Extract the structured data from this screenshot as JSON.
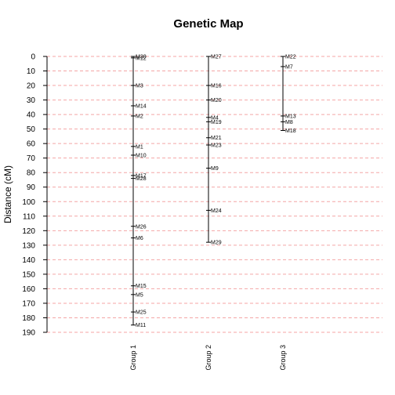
{
  "chart_data": {
    "type": "genetic-map",
    "title": "Genetic Map",
    "ylabel": "Distance (cM)",
    "ylim": [
      0,
      190
    ],
    "yticks": [
      0,
      10,
      20,
      30,
      40,
      50,
      60,
      70,
      80,
      90,
      100,
      110,
      120,
      130,
      140,
      150,
      160,
      170,
      180,
      190
    ],
    "grid": true,
    "grid_color": "#f4a6a6",
    "groups": [
      {
        "name": "Group 1",
        "markers": [
          {
            "name": "M30",
            "pos": 0
          },
          {
            "name": "M12",
            "pos": 1
          },
          {
            "name": "M3",
            "pos": 20
          },
          {
            "name": "M14",
            "pos": 34
          },
          {
            "name": "M2",
            "pos": 41
          },
          {
            "name": "M1",
            "pos": 62
          },
          {
            "name": "M10",
            "pos": 68
          },
          {
            "name": "M17",
            "pos": 82
          },
          {
            "name": "M28",
            "pos": 84
          },
          {
            "name": "M26",
            "pos": 117
          },
          {
            "name": "M6",
            "pos": 125
          },
          {
            "name": "M15",
            "pos": 158
          },
          {
            "name": "M5",
            "pos": 164
          },
          {
            "name": "M25",
            "pos": 176
          },
          {
            "name": "M11",
            "pos": 185
          }
        ]
      },
      {
        "name": "Group 2",
        "markers": [
          {
            "name": "M27",
            "pos": 0
          },
          {
            "name": "M16",
            "pos": 20
          },
          {
            "name": "M20",
            "pos": 30
          },
          {
            "name": "M4",
            "pos": 42
          },
          {
            "name": "M19",
            "pos": 45
          },
          {
            "name": "M21",
            "pos": 56
          },
          {
            "name": "M23",
            "pos": 61
          },
          {
            "name": "M9",
            "pos": 77
          },
          {
            "name": "M24",
            "pos": 106
          },
          {
            "name": "M29",
            "pos": 128
          }
        ]
      },
      {
        "name": "Group 3",
        "markers": [
          {
            "name": "M22",
            "pos": 0
          },
          {
            "name": "M7",
            "pos": 7
          },
          {
            "name": "M13",
            "pos": 41
          },
          {
            "name": "M8",
            "pos": 45
          },
          {
            "name": "M18",
            "pos": 51
          }
        ]
      }
    ]
  }
}
